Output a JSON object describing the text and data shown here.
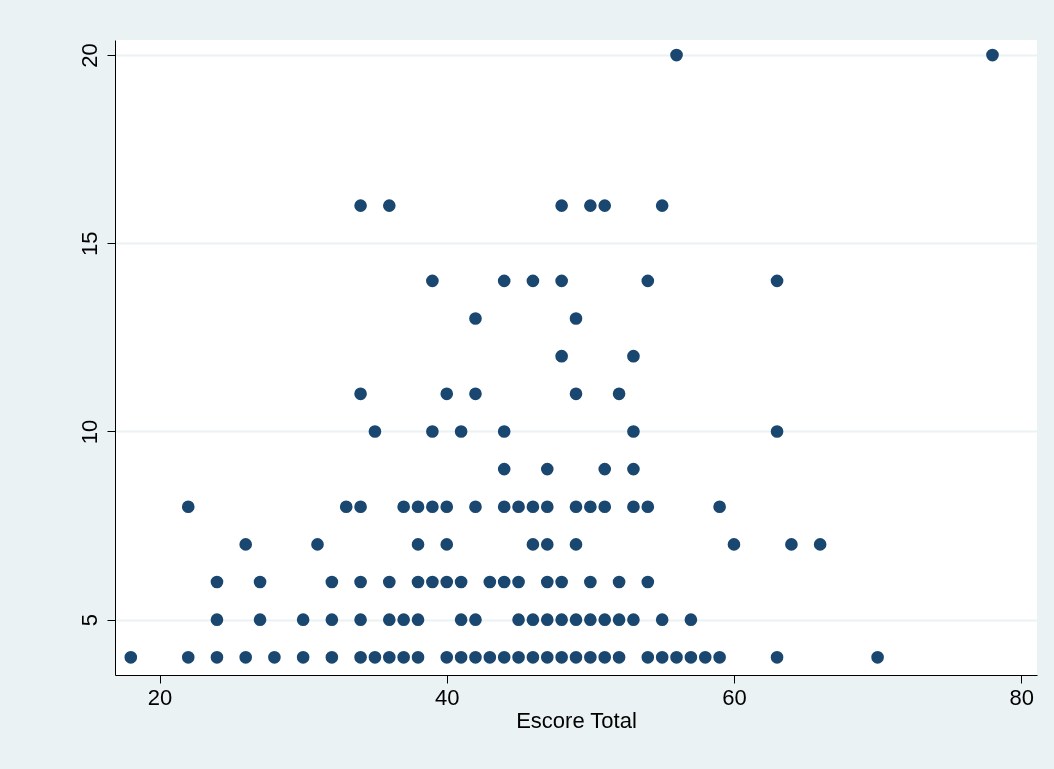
{
  "chart_data": {
    "type": "scatter",
    "xlabel": "Escore Total",
    "xlim": [
      16.9,
      81.1
    ],
    "ylim": [
      3.53,
      20.4
    ],
    "xticks": [
      20,
      40,
      60,
      80
    ],
    "yticks": [
      5,
      10,
      15,
      20
    ],
    "grid": "y",
    "marker": "circle",
    "legend": false,
    "series": [
      {
        "color": "#1a476f",
        "x": [
          18,
          22,
          24,
          26,
          28,
          30,
          32,
          34,
          35,
          36,
          37,
          38,
          40,
          41,
          42,
          43,
          44,
          45,
          46,
          47,
          48,
          49,
          50,
          51,
          52,
          54,
          55,
          56,
          57,
          58,
          59,
          63,
          70,
          24,
          27,
          30,
          32,
          34,
          36,
          37,
          38,
          41,
          42,
          45,
          46,
          47,
          48,
          49,
          50,
          51,
          52,
          53,
          55,
          57,
          24,
          27,
          32,
          34,
          36,
          38,
          39,
          40,
          41,
          43,
          44,
          45,
          47,
          48,
          50,
          52,
          54,
          26,
          31,
          38,
          40,
          46,
          47,
          49,
          60,
          64,
          66,
          22,
          33,
          34,
          37,
          38,
          39,
          40,
          42,
          44,
          45,
          46,
          47,
          49,
          50,
          51,
          53,
          54,
          59,
          44,
          47,
          51,
          53,
          35,
          39,
          41,
          44,
          53,
          63,
          34,
          40,
          42,
          49,
          52,
          48,
          53,
          42,
          49,
          39,
          44,
          46,
          48,
          54,
          63,
          34,
          36,
          48,
          50,
          51,
          55,
          56,
          78
        ],
        "values": [
          4,
          4,
          4,
          4,
          4,
          4,
          4,
          4,
          4,
          4,
          4,
          4,
          4,
          4,
          4,
          4,
          4,
          4,
          4,
          4,
          4,
          4,
          4,
          4,
          4,
          4,
          4,
          4,
          4,
          4,
          4,
          4,
          4,
          5,
          5,
          5,
          5,
          5,
          5,
          5,
          5,
          5,
          5,
          5,
          5,
          5,
          5,
          5,
          5,
          5,
          5,
          5,
          5,
          5,
          6,
          6,
          6,
          6,
          6,
          6,
          6,
          6,
          6,
          6,
          6,
          6,
          6,
          6,
          6,
          6,
          6,
          7,
          7,
          7,
          7,
          7,
          7,
          7,
          7,
          7,
          7,
          8,
          8,
          8,
          8,
          8,
          8,
          8,
          8,
          8,
          8,
          8,
          8,
          8,
          8,
          8,
          8,
          8,
          8,
          9,
          9,
          9,
          9,
          10,
          10,
          10,
          10,
          10,
          10,
          11,
          11,
          11,
          11,
          11,
          12,
          12,
          13,
          13,
          14,
          14,
          14,
          14,
          14,
          14,
          16,
          16,
          16,
          16,
          16,
          16,
          20,
          20
        ]
      }
    ]
  }
}
